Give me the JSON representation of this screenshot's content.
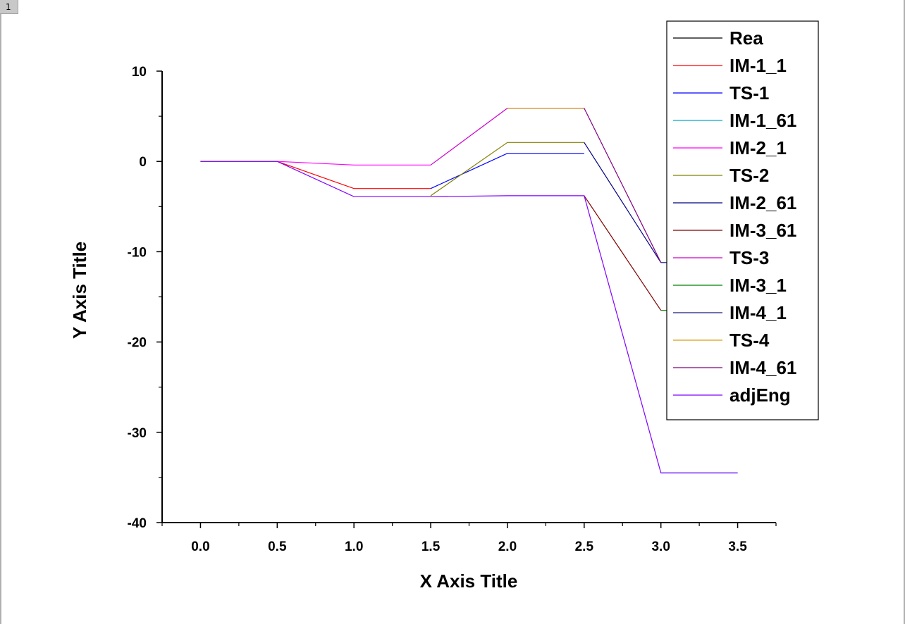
{
  "page": {
    "tab_label": "1"
  },
  "chart_data": {
    "type": "line",
    "title": "",
    "xlabel": "X Axis Title",
    "ylabel": "Y Axis Title",
    "xlim": [
      -0.25,
      3.75
    ],
    "ylim": [
      -40,
      10
    ],
    "xticks": [
      0.0,
      0.5,
      1.0,
      1.5,
      2.0,
      2.5,
      3.0,
      3.5
    ],
    "xtick_labels": [
      "0.0",
      "0.5",
      "1.0",
      "1.5",
      "2.0",
      "2.5",
      "3.0",
      "3.5"
    ],
    "yticks": [
      10,
      0,
      -10,
      -20,
      -30,
      -40
    ],
    "ytick_labels": [
      "10",
      "0",
      "-10",
      "-20",
      "-30",
      "-40"
    ],
    "grid": false,
    "legend_position": "top-right",
    "series": [
      {
        "name": "Rea",
        "color": "#000000",
        "x": [
          0.0,
          0.5
        ],
        "y": [
          0,
          0
        ]
      },
      {
        "name": "IM-1_1",
        "color": "#ff0000",
        "x": [
          0.5,
          1.0,
          1.5
        ],
        "y": [
          0,
          -3.0,
          -3.0
        ]
      },
      {
        "name": "TS-1",
        "color": "#0000ff",
        "x": [
          1.5,
          2.0,
          2.5
        ],
        "y": [
          -3.0,
          0.9,
          0.9
        ]
      },
      {
        "name": "IM-1_61",
        "color": "#00aacc",
        "x": [
          3.0,
          3.5
        ],
        "y": [
          -34.5,
          -34.5
        ]
      },
      {
        "name": "IM-2_1",
        "color": "#ff00ff",
        "x": [
          0.5,
          1.0,
          1.5
        ],
        "y": [
          0,
          -0.4,
          -0.4
        ]
      },
      {
        "name": "TS-2",
        "color": "#808000",
        "x": [
          1.5,
          2.0,
          2.5
        ],
        "y": [
          -3.8,
          2.1,
          2.1
        ]
      },
      {
        "name": "IM-2_61",
        "color": "#000080",
        "x": [
          2.5,
          3.0
        ],
        "y": [
          2.1,
          -11.2
        ]
      },
      {
        "name": "IM-3_61",
        "color": "#800000",
        "x": [
          2.5,
          3.0
        ],
        "y": [
          -3.8,
          -16.5
        ]
      },
      {
        "name": "TS-3",
        "color": "#cc00cc",
        "x": [
          1.5,
          2.0,
          2.5
        ],
        "y": [
          -0.4,
          5.9,
          5.9
        ]
      },
      {
        "name": "IM-3_1",
        "color": "#008000",
        "x": [
          3.0,
          3.05
        ],
        "y": [
          -16.5,
          -16.5
        ]
      },
      {
        "name": "IM-4_1",
        "color": "#1a1a80",
        "x": [
          3.0,
          3.05
        ],
        "y": [
          -11.2,
          -11.2
        ]
      },
      {
        "name": "TS-4",
        "color": "#d4a017",
        "x": [
          2.0,
          2.5
        ],
        "y": [
          5.9,
          5.9
        ]
      },
      {
        "name": "IM-4_61",
        "color": "#800080",
        "x": [
          2.5,
          3.0
        ],
        "y": [
          5.9,
          -11.2
        ]
      },
      {
        "name": "adjEng",
        "color": "#8000ff",
        "x": [
          0.0,
          0.5,
          1.0,
          1.5,
          2.0,
          2.5,
          3.0,
          3.5
        ],
        "y": [
          0,
          0,
          -3.9,
          -3.9,
          -3.8,
          -3.8,
          -34.5,
          -34.5
        ]
      }
    ]
  }
}
